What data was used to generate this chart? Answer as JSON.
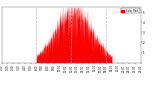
{
  "bar_color": "#ff0000",
  "background_color": "#ffffff",
  "grid_color": "#bbbbbb",
  "legend_label": "Solar Rad.",
  "legend_color": "#ff0000",
  "num_points": 1440,
  "peak_minute": 750,
  "peak_value": 1.0,
  "sigma": 195,
  "rise_minute": 360,
  "set_minute": 1140,
  "yticks": [
    1,
    2,
    3,
    4,
    5
  ],
  "ylim": [
    0,
    5.5
  ],
  "xtick_positions": [
    0,
    60,
    120,
    180,
    240,
    300,
    360,
    420,
    480,
    540,
    600,
    660,
    720,
    780,
    840,
    900,
    960,
    1020,
    1080,
    1140,
    1200,
    1260,
    1320,
    1380,
    1439
  ],
  "xtick_labels": [
    "0:00",
    "1:00",
    "2:00",
    "3:00",
    "4:00",
    "5:00",
    "6:00",
    "7:00",
    "8:00",
    "9:00",
    "10:00",
    "11:00",
    "12:00",
    "13:00",
    "14:00",
    "15:00",
    "16:00",
    "17:00",
    "18:00",
    "19:00",
    "20:00",
    "21:00",
    "22:00",
    "23:00",
    "24:00"
  ],
  "vline_positions": [
    360,
    720,
    1080
  ],
  "figsize": [
    1.6,
    0.87
  ],
  "dpi": 100
}
